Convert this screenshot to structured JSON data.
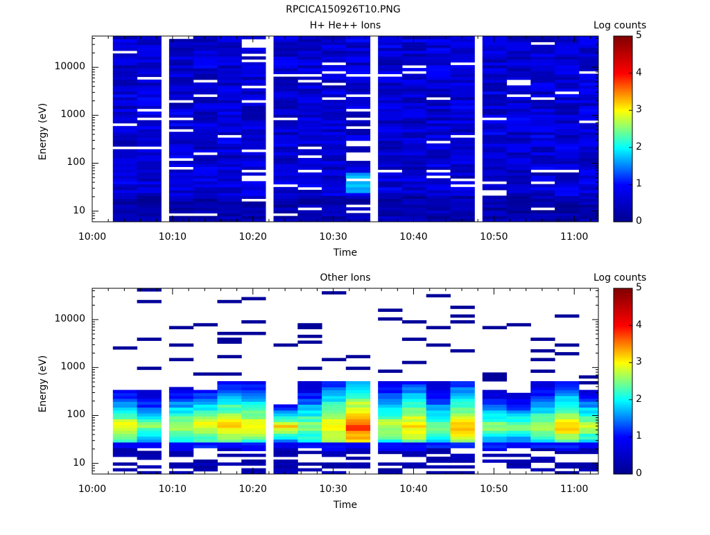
{
  "figure_title": "RPCICA150926T10.PNG",
  "colormap": [
    "#00008f",
    "#0000ff",
    "#00ffff",
    "#ffff00",
    "#ff0000",
    "#800000"
  ],
  "background_color": "#ffffff",
  "chart_data": [
    {
      "type": "heatmap",
      "title": "H+ He++ Ions",
      "xlabel": "Time",
      "ylabel": "Energy (eV)",
      "yscale": "log",
      "ylim": [
        6,
        45000
      ],
      "xlim": [
        "10:00",
        "11:03"
      ],
      "xticks": [
        "10:00",
        "10:10",
        "10:20",
        "10:30",
        "10:40",
        "10:50",
        "11:00"
      ],
      "yticks": [
        "10",
        "100",
        "1000",
        "10000"
      ],
      "colorbar": {
        "label": "Log counts",
        "min": 0,
        "max": 5,
        "ticks": [
          "0",
          "1",
          "2",
          "3",
          "4",
          "5"
        ]
      },
      "time_columns": [
        "10:02",
        "10:05",
        "10:09",
        "10:12",
        "10:15",
        "10:18",
        "10:22",
        "10:25",
        "10:28",
        "10:31",
        "10:35",
        "10:38",
        "10:41",
        "10:44",
        "10:48",
        "10:51",
        "10:54",
        "10:57",
        "11:00"
      ],
      "description": "Low counts (log counts ~0-1) across all energies 10-40000 eV; slightly higher (~1.5) near 30-50 eV around 10:31"
    },
    {
      "type": "heatmap",
      "title": "Other Ions",
      "xlabel": "Time",
      "ylabel": "Energy (eV)",
      "yscale": "log",
      "ylim": [
        6,
        45000
      ],
      "xlim": [
        "10:00",
        "11:03"
      ],
      "xticks": [
        "10:00",
        "10:10",
        "10:20",
        "10:30",
        "10:40",
        "10:50",
        "11:00"
      ],
      "yticks": [
        "10",
        "100",
        "1000",
        "10000"
      ],
      "colorbar": {
        "label": "Log counts",
        "min": 0,
        "max": 5,
        "ticks": [
          "0",
          "1",
          "2",
          "3",
          "4",
          "5"
        ]
      },
      "time_columns": [
        "10:02",
        "10:05",
        "10:09",
        "10:12",
        "10:15",
        "10:18",
        "10:22",
        "10:25",
        "10:28",
        "10:31",
        "10:35",
        "10:38",
        "10:41",
        "10:44",
        "10:48",
        "10:51",
        "10:54",
        "10:57",
        "11:00"
      ],
      "peak_log_counts": [
        3.0,
        2.5,
        2.8,
        3.0,
        3.2,
        3.0,
        3.1,
        2.6,
        3.2,
        3.8,
        2.8,
        3.2,
        2.5,
        3.3,
        2.6,
        2.5,
        2.7,
        3.2,
        2.8
      ],
      "band_top_eV": [
        330,
        330,
        390,
        360,
        520,
        520,
        160,
        520,
        520,
        520,
        520,
        520,
        520,
        520,
        330,
        300,
        500,
        500,
        360
      ],
      "band_bottom_eV": [
        22,
        22,
        18,
        22,
        22,
        18,
        22,
        22,
        18,
        22,
        18,
        18,
        22,
        22,
        18,
        22,
        22,
        18,
        22
      ]
    }
  ]
}
